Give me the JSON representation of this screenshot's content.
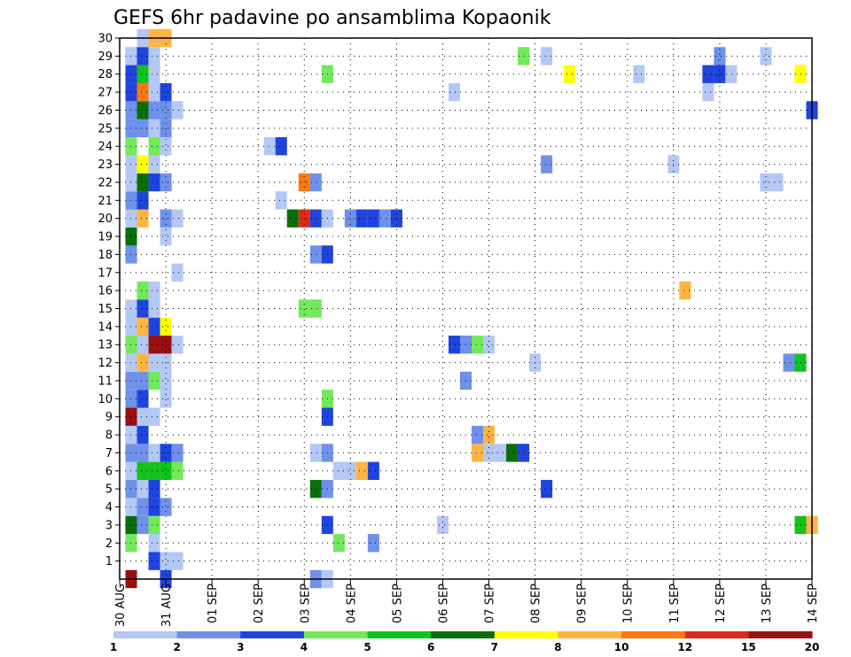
{
  "chart_data": {
    "type": "heatmap",
    "title": "GEFS 6hr padavine po ansamblima Kopaonik",
    "xlabel": "",
    "ylabel": "",
    "x_ticks": [
      "30 AUG",
      "31 AUG",
      "01 SEP",
      "02 SEP",
      "03 SEP",
      "04 SEP",
      "05 SEP",
      "06 SEP",
      "07 SEP",
      "08 SEP",
      "09 SEP",
      "10 SEP",
      "11 SEP",
      "12 SEP",
      "13 SEP",
      "14 SEP"
    ],
    "y_ticks": [
      "1",
      "2",
      "3",
      "4",
      "5",
      "6",
      "7",
      "8",
      "9",
      "10",
      "11",
      "12",
      "13",
      "14",
      "15",
      "16",
      "17",
      "18",
      "19",
      "20",
      "21",
      "22",
      "23",
      "24",
      "25",
      "26",
      "27",
      "28",
      "29",
      "30"
    ],
    "ylim": [
      0,
      30
    ],
    "grid": true,
    "legend_position": "bottom",
    "legend": {
      "labels": [
        "1",
        "2",
        "3",
        "4",
        "5",
        "6",
        "7",
        "8",
        "10",
        "12",
        "15",
        "20"
      ],
      "colors": [
        "#b4c8f5",
        "#6f90eb",
        "#1f44dd",
        "#72e95a",
        "#12c21c",
        "#086e08",
        "#ffff00",
        "#ffb442",
        "#fa780f",
        "#e02a17",
        "#9a0f0f"
      ]
    },
    "time_steps_per_tick": 4,
    "cells": [
      {
        "t": 1,
        "m": 0,
        "v": 20
      },
      {
        "t": 4,
        "m": 0,
        "v": 3
      },
      {
        "t": 17,
        "m": 0,
        "v": 2
      },
      {
        "t": 18,
        "m": 0,
        "v": 1
      },
      {
        "t": 3,
        "m": 1,
        "v": 3
      },
      {
        "t": 4,
        "m": 1,
        "v": 1
      },
      {
        "t": 5,
        "m": 1,
        "v": 1
      },
      {
        "t": 1,
        "m": 2,
        "v": 4
      },
      {
        "t": 3,
        "m": 2,
        "v": 1
      },
      {
        "t": 19,
        "m": 2,
        "v": 4
      },
      {
        "t": 22,
        "m": 2,
        "v": 2
      },
      {
        "t": 1,
        "m": 3,
        "v": 6
      },
      {
        "t": 2,
        "m": 3,
        "v": 2
      },
      {
        "t": 3,
        "m": 3,
        "v": 4
      },
      {
        "t": 18,
        "m": 3,
        "v": 3
      },
      {
        "t": 28,
        "m": 3,
        "v": 1
      },
      {
        "t": 59,
        "m": 3,
        "v": 5
      },
      {
        "t": 60,
        "m": 3,
        "v": 8
      },
      {
        "t": 1,
        "m": 4,
        "v": 1
      },
      {
        "t": 2,
        "m": 4,
        "v": 2
      },
      {
        "t": 3,
        "m": 4,
        "v": 3
      },
      {
        "t": 4,
        "m": 4,
        "v": 2
      },
      {
        "t": 1,
        "m": 5,
        "v": 2
      },
      {
        "t": 2,
        "m": 5,
        "v": 1
      },
      {
        "t": 3,
        "m": 5,
        "v": 3
      },
      {
        "t": 17,
        "m": 5,
        "v": 6
      },
      {
        "t": 18,
        "m": 5,
        "v": 2
      },
      {
        "t": 37,
        "m": 5,
        "v": 3
      },
      {
        "t": 1,
        "m": 6,
        "v": 1
      },
      {
        "t": 2,
        "m": 6,
        "v": 5
      },
      {
        "t": 3,
        "m": 6,
        "v": 5
      },
      {
        "t": 4,
        "m": 6,
        "v": 5
      },
      {
        "t": 5,
        "m": 6,
        "v": 4
      },
      {
        "t": 19,
        "m": 6,
        "v": 1
      },
      {
        "t": 20,
        "m": 6,
        "v": 1
      },
      {
        "t": 21,
        "m": 6,
        "v": 8
      },
      {
        "t": 22,
        "m": 6,
        "v": 3
      },
      {
        "t": 1,
        "m": 7,
        "v": 2
      },
      {
        "t": 2,
        "m": 7,
        "v": 2
      },
      {
        "t": 3,
        "m": 7,
        "v": 1
      },
      {
        "t": 4,
        "m": 7,
        "v": 3
      },
      {
        "t": 5,
        "m": 7,
        "v": 2
      },
      {
        "t": 17,
        "m": 7,
        "v": 1
      },
      {
        "t": 18,
        "m": 7,
        "v": 2
      },
      {
        "t": 31,
        "m": 7,
        "v": 8
      },
      {
        "t": 32,
        "m": 7,
        "v": 1
      },
      {
        "t": 33,
        "m": 7,
        "v": 1
      },
      {
        "t": 34,
        "m": 7,
        "v": 6
      },
      {
        "t": 35,
        "m": 7,
        "v": 3
      },
      {
        "t": 1,
        "m": 8,
        "v": 1
      },
      {
        "t": 2,
        "m": 8,
        "v": 3
      },
      {
        "t": 31,
        "m": 8,
        "v": 2
      },
      {
        "t": 32,
        "m": 8,
        "v": 8
      },
      {
        "t": 1,
        "m": 9,
        "v": 15
      },
      {
        "t": 2,
        "m": 9,
        "v": 1
      },
      {
        "t": 3,
        "m": 9,
        "v": 1
      },
      {
        "t": 18,
        "m": 9,
        "v": 3
      },
      {
        "t": 1,
        "m": 10,
        "v": 2
      },
      {
        "t": 2,
        "m": 10,
        "v": 3
      },
      {
        "t": 4,
        "m": 10,
        "v": 1
      },
      {
        "t": 18,
        "m": 10,
        "v": 4
      },
      {
        "t": 1,
        "m": 11,
        "v": 2
      },
      {
        "t": 2,
        "m": 11,
        "v": 2
      },
      {
        "t": 3,
        "m": 11,
        "v": 4
      },
      {
        "t": 4,
        "m": 11,
        "v": 1
      },
      {
        "t": 30,
        "m": 11,
        "v": 2
      },
      {
        "t": 1,
        "m": 12,
        "v": 1
      },
      {
        "t": 2,
        "m": 12,
        "v": 8
      },
      {
        "t": 3,
        "m": 12,
        "v": 1
      },
      {
        "t": 4,
        "m": 12,
        "v": 1
      },
      {
        "t": 36,
        "m": 12,
        "v": 1
      },
      {
        "t": 58,
        "m": 12,
        "v": 2
      },
      {
        "t": 59,
        "m": 12,
        "v": 5
      },
      {
        "t": 1,
        "m": 13,
        "v": 4
      },
      {
        "t": 2,
        "m": 13,
        "v": 1
      },
      {
        "t": 3,
        "m": 13,
        "v": 20
      },
      {
        "t": 4,
        "m": 13,
        "v": 15
      },
      {
        "t": 5,
        "m": 13,
        "v": 1
      },
      {
        "t": 29,
        "m": 13,
        "v": 3
      },
      {
        "t": 30,
        "m": 13,
        "v": 2
      },
      {
        "t": 31,
        "m": 13,
        "v": 4
      },
      {
        "t": 32,
        "m": 13,
        "v": 1
      },
      {
        "t": 1,
        "m": 14,
        "v": 1
      },
      {
        "t": 2,
        "m": 14,
        "v": 8
      },
      {
        "t": 3,
        "m": 14,
        "v": 3
      },
      {
        "t": 4,
        "m": 14,
        "v": 7
      },
      {
        "t": 1,
        "m": 15,
        "v": 1
      },
      {
        "t": 2,
        "m": 15,
        "v": 3
      },
      {
        "t": 3,
        "m": 15,
        "v": 1
      },
      {
        "t": 16,
        "m": 15,
        "v": 4
      },
      {
        "t": 17,
        "m": 15,
        "v": 4
      },
      {
        "t": 2,
        "m": 16,
        "v": 4
      },
      {
        "t": 3,
        "m": 16,
        "v": 1
      },
      {
        "t": 49,
        "m": 16,
        "v": 8
      },
      {
        "t": 5,
        "m": 17,
        "v": 1
      },
      {
        "t": 1,
        "m": 18,
        "v": 2
      },
      {
        "t": 17,
        "m": 18,
        "v": 2
      },
      {
        "t": 18,
        "m": 18,
        "v": 3
      },
      {
        "t": 1,
        "m": 19,
        "v": 6
      },
      {
        "t": 4,
        "m": 19,
        "v": 1
      },
      {
        "t": 1,
        "m": 20,
        "v": 1
      },
      {
        "t": 2,
        "m": 20,
        "v": 8
      },
      {
        "t": 4,
        "m": 20,
        "v": 2
      },
      {
        "t": 5,
        "m": 20,
        "v": 1
      },
      {
        "t": 15,
        "m": 20,
        "v": 6
      },
      {
        "t": 16,
        "m": 20,
        "v": 12
      },
      {
        "t": 17,
        "m": 20,
        "v": 3
      },
      {
        "t": 18,
        "m": 20,
        "v": 1
      },
      {
        "t": 20,
        "m": 20,
        "v": 2
      },
      {
        "t": 21,
        "m": 20,
        "v": 3
      },
      {
        "t": 22,
        "m": 20,
        "v": 3
      },
      {
        "t": 23,
        "m": 20,
        "v": 2
      },
      {
        "t": 24,
        "m": 20,
        "v": 3
      },
      {
        "t": 1,
        "m": 21,
        "v": 2
      },
      {
        "t": 2,
        "m": 21,
        "v": 3
      },
      {
        "t": 14,
        "m": 21,
        "v": 1
      },
      {
        "t": 1,
        "m": 22,
        "v": 1
      },
      {
        "t": 2,
        "m": 22,
        "v": 6
      },
      {
        "t": 3,
        "m": 22,
        "v": 3
      },
      {
        "t": 4,
        "m": 22,
        "v": 2
      },
      {
        "t": 16,
        "m": 22,
        "v": 10
      },
      {
        "t": 17,
        "m": 22,
        "v": 2
      },
      {
        "t": 56,
        "m": 22,
        "v": 1
      },
      {
        "t": 57,
        "m": 22,
        "v": 1
      },
      {
        "t": 1,
        "m": 23,
        "v": 1
      },
      {
        "t": 2,
        "m": 23,
        "v": 7
      },
      {
        "t": 3,
        "m": 23,
        "v": 1
      },
      {
        "t": 37,
        "m": 23,
        "v": 2
      },
      {
        "t": 48,
        "m": 23,
        "v": 1
      },
      {
        "t": 1,
        "m": 24,
        "v": 4
      },
      {
        "t": 3,
        "m": 24,
        "v": 4
      },
      {
        "t": 4,
        "m": 24,
        "v": 1
      },
      {
        "t": 13,
        "m": 24,
        "v": 1
      },
      {
        "t": 14,
        "m": 24,
        "v": 3
      },
      {
        "t": 1,
        "m": 25,
        "v": 2
      },
      {
        "t": 2,
        "m": 25,
        "v": 2
      },
      {
        "t": 3,
        "m": 25,
        "v": 1
      },
      {
        "t": 4,
        "m": 25,
        "v": 2
      },
      {
        "t": 1,
        "m": 26,
        "v": 2
      },
      {
        "t": 2,
        "m": 26,
        "v": 6
      },
      {
        "t": 3,
        "m": 26,
        "v": 2
      },
      {
        "t": 4,
        "m": 26,
        "v": 2
      },
      {
        "t": 5,
        "m": 26,
        "v": 1
      },
      {
        "t": 60,
        "m": 26,
        "v": 3
      },
      {
        "t": 1,
        "m": 27,
        "v": 3
      },
      {
        "t": 2,
        "m": 27,
        "v": 10
      },
      {
        "t": 3,
        "m": 27,
        "v": 1
      },
      {
        "t": 4,
        "m": 27,
        "v": 3
      },
      {
        "t": 29,
        "m": 27,
        "v": 1
      },
      {
        "t": 51,
        "m": 27,
        "v": 1
      },
      {
        "t": 1,
        "m": 28,
        "v": 3
      },
      {
        "t": 2,
        "m": 28,
        "v": 5
      },
      {
        "t": 3,
        "m": 28,
        "v": 1
      },
      {
        "t": 18,
        "m": 28,
        "v": 4
      },
      {
        "t": 39,
        "m": 28,
        "v": 7
      },
      {
        "t": 45,
        "m": 28,
        "v": 1
      },
      {
        "t": 51,
        "m": 28,
        "v": 3
      },
      {
        "t": 52,
        "m": 28,
        "v": 3
      },
      {
        "t": 53,
        "m": 28,
        "v": 1
      },
      {
        "t": 59,
        "m": 28,
        "v": 7
      },
      {
        "t": 1,
        "m": 29,
        "v": 1
      },
      {
        "t": 2,
        "m": 29,
        "v": 3
      },
      {
        "t": 3,
        "m": 29,
        "v": 1
      },
      {
        "t": 35,
        "m": 29,
        "v": 4
      },
      {
        "t": 37,
        "m": 29,
        "v": 1
      },
      {
        "t": 52,
        "m": 29,
        "v": 2
      },
      {
        "t": 56,
        "m": 29,
        "v": 1
      },
      {
        "t": 2,
        "m": 30,
        "v": 1
      },
      {
        "t": 3,
        "m": 30,
        "v": 8
      },
      {
        "t": 4,
        "m": 30,
        "v": 8
      }
    ]
  }
}
